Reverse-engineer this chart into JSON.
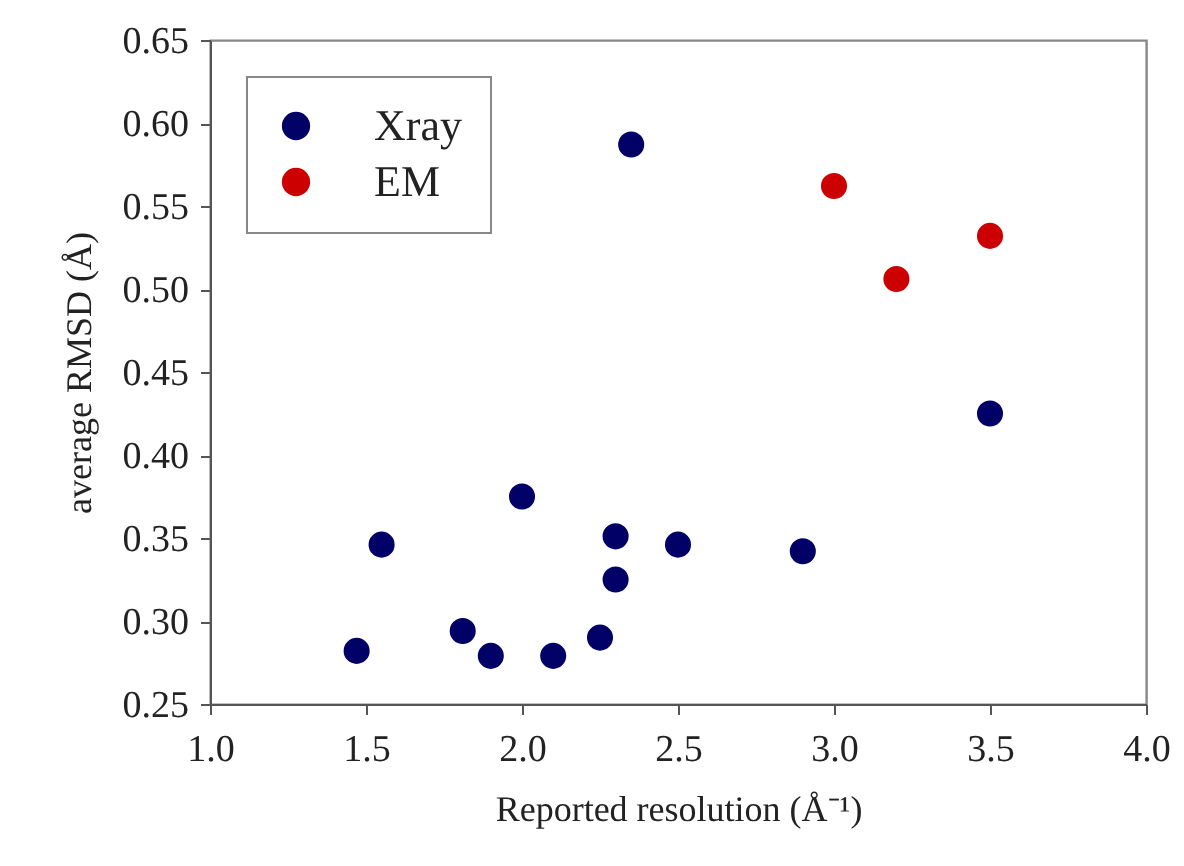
{
  "chart_data": {
    "type": "scatter",
    "xlabel": "Reported resolution (Å⁻¹)",
    "ylabel": "average RMSD (Å)",
    "series": [
      {
        "name": "Xray",
        "color": "#000066",
        "x": [
          1.47,
          1.55,
          1.81,
          1.9,
          2.0,
          2.1,
          2.25,
          2.3,
          2.3,
          2.5,
          2.9,
          3.5,
          2.35
        ],
        "values": [
          0.282,
          0.346,
          0.294,
          0.279,
          0.375,
          0.279,
          0.29,
          0.351,
          0.325,
          0.346,
          0.342,
          0.425,
          0.587
        ]
      },
      {
        "name": "EM",
        "color": "#cc0000",
        "x": [
          3.0,
          3.2,
          3.5
        ],
        "values": [
          0.562,
          0.506,
          0.532
        ]
      }
    ],
    "xlim": [
      1.0,
      4.0
    ],
    "xticks": [
      {
        "value": 1.0,
        "label": "1.0"
      },
      1.5,
      {
        "value": 2.0,
        "label": "2.0"
      },
      2.5,
      {
        "value": 3.0,
        "label": "3.0"
      },
      3.5,
      {
        "value": 4.0,
        "label": "4.0"
      }
    ],
    "ylim": [
      0.25,
      0.65
    ],
    "yticks": [
      0.25,
      {
        "value": 0.3,
        "label": "0.30"
      },
      0.35,
      {
        "value": 0.4,
        "label": "0.40"
      },
      0.45,
      {
        "value": 0.5,
        "label": "0.50"
      },
      0.55,
      {
        "value": 0.6,
        "label": "0.60"
      },
      0.65
    ],
    "grid": false,
    "legend": "top left",
    "marker": "circle"
  }
}
